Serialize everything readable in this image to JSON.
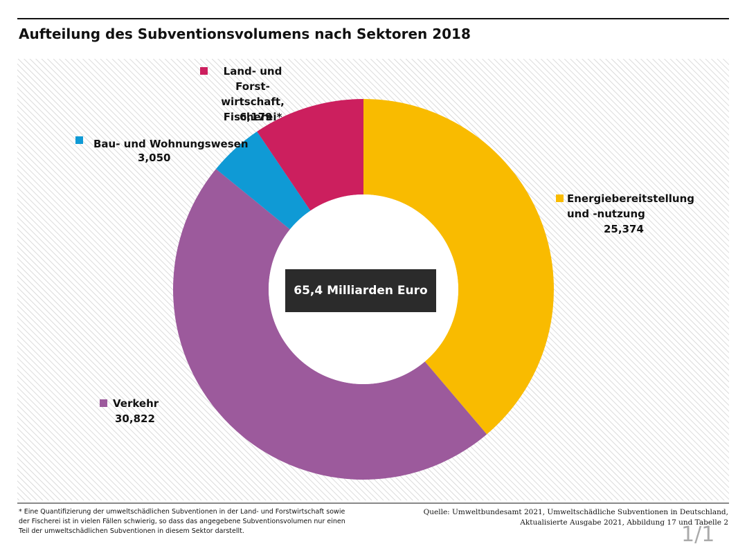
{
  "chart_data": {
    "type": "donut",
    "title": "Aufteilung des Subventionsvolumens nach Sektoren 2018",
    "center_label": "65,4 Milliarden Euro",
    "categories": [
      "Energiebereitstellung\nund -nutzung",
      "Verkehr",
      "Bau- und Wohnungswesen",
      "Land- und Forst-\nwirtschaft,\nFischerei*"
    ],
    "values": [
      25.374,
      30.822,
      3.05,
      6.179
    ],
    "value_labels": [
      "25,374",
      "30,822",
      "3,050",
      "6,179"
    ],
    "colors": [
      "#f9bb00",
      "#9c5a9c",
      "#0f9ad5",
      "#cc1f5e"
    ],
    "footnote": "* Eine Quantifizierung der umweltschädlichen Subventionen in der Land- und Forstwirtschaft sowie\nder Fischerei ist in vielen Fällen schwierig, so dass das angegebene Subventionsvolumen nur einen\nTeil der umweltschädlichen Subventionen in diesem Sektor darstellt.",
    "source": "Quelle: Umweltbundesamt 2021, Umweltschädliche Subventionen in Deutschland,\nAktualisierte Ausgabe 2021, Abbildung 17 und Tabelle 2",
    "page_indicator": "1/1"
  }
}
